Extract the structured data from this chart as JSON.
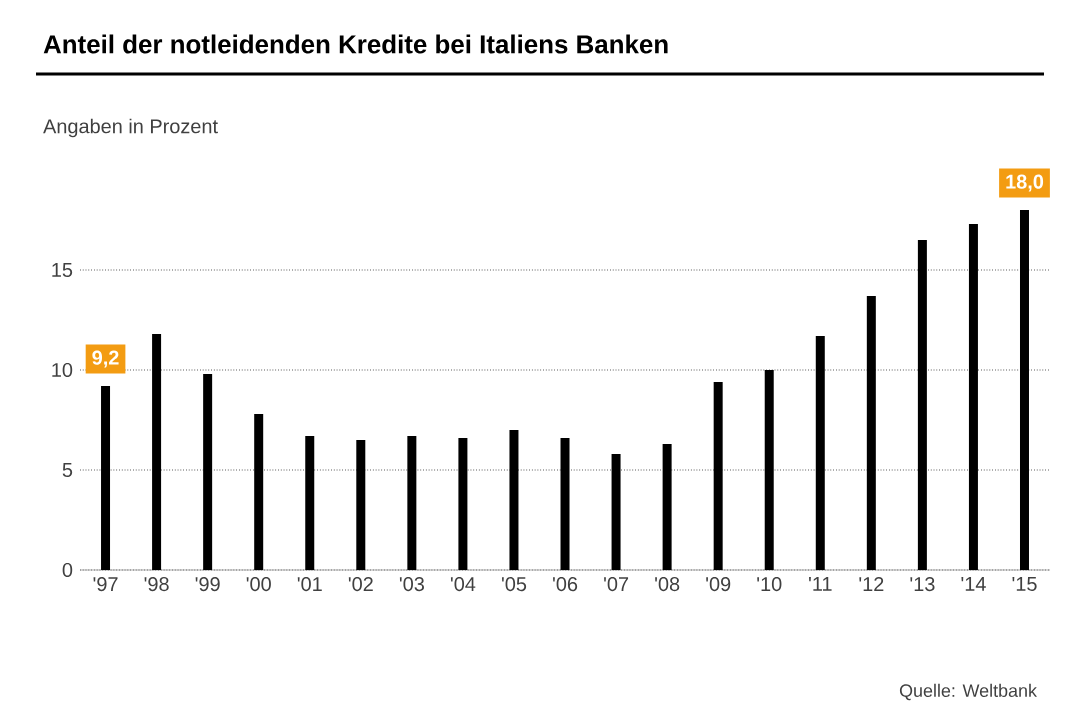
{
  "chart_data": {
    "type": "bar",
    "title": "Anteil der notleidenden Kredite bei Italiens Banken",
    "subtitle": "Angaben in Prozent",
    "categories": [
      "'97",
      "'98",
      "'99",
      "'00",
      "'01",
      "'02",
      "'03",
      "'04",
      "'05",
      "'06",
      "'07",
      "'08",
      "'09",
      "'10",
      "'11",
      "'12",
      "'13",
      "'14",
      "'15"
    ],
    "values": [
      9.2,
      11.8,
      9.8,
      7.8,
      6.7,
      6.5,
      6.7,
      6.6,
      7.0,
      6.6,
      5.8,
      6.3,
      9.4,
      10.0,
      11.7,
      13.7,
      16.5,
      17.3,
      18.0
    ],
    "value_labels": [
      "9,2",
      null,
      null,
      null,
      null,
      null,
      null,
      null,
      null,
      null,
      null,
      null,
      null,
      null,
      null,
      null,
      null,
      null,
      "18,0"
    ],
    "color": "#000000",
    "ylim": [
      0,
      18
    ],
    "yticks": [
      0,
      5,
      10,
      15
    ],
    "grid": "y",
    "annotations": [
      "Quelle: Weltbank"
    ]
  }
}
